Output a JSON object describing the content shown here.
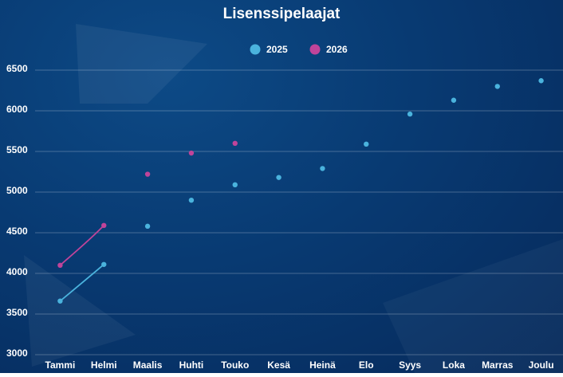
{
  "chart_data": {
    "type": "line",
    "title": "Lisenssipelaajat",
    "categories": [
      "Tammi",
      "Helmi",
      "Maalis",
      "Huhti",
      "Touko",
      "Kesä",
      "Heinä",
      "Elo",
      "Syys",
      "Loka",
      "Marras",
      "Joulu"
    ],
    "series": [
      {
        "name": "2025",
        "color": "#4ab3dd",
        "values": [
          3660,
          4110,
          4580,
          4900,
          5090,
          5180,
          5290,
          5590,
          5960,
          6130,
          6300,
          6370
        ]
      },
      {
        "name": "2026",
        "color": "#c0449a",
        "values": [
          4100,
          4590,
          5220,
          5480,
          5600,
          null,
          null,
          null,
          null,
          null,
          null,
          null
        ]
      }
    ],
    "ylim": [
      3000,
      6750
    ],
    "yticks": [
      3000,
      3500,
      4000,
      4500,
      5000,
      5500,
      6000,
      6500
    ],
    "grid": true,
    "legend": "top"
  }
}
